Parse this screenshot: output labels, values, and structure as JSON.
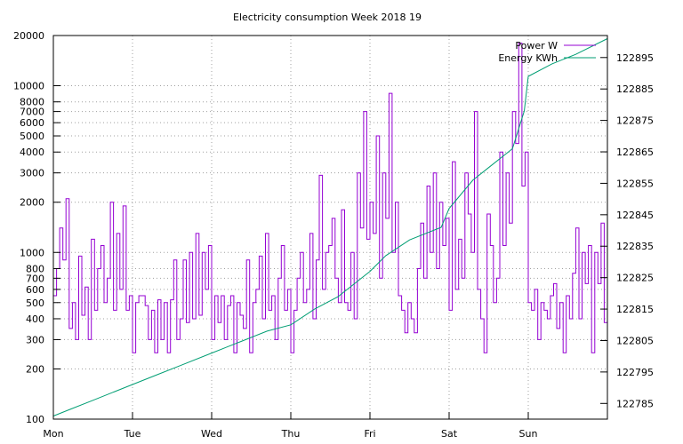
{
  "chart_data": {
    "type": "line",
    "title": "Electricity consumption Week 2018 19",
    "x_ticks": [
      "Mon",
      "Tue",
      "Wed",
      "Thu",
      "Fri",
      "Sat",
      "Sun"
    ],
    "xlim_days": [
      0,
      7
    ],
    "y_left": {
      "scale": "log",
      "range": [
        100,
        20000
      ],
      "tick_values": [
        100,
        200,
        300,
        400,
        500,
        600,
        700,
        800,
        1000,
        2000,
        3000,
        4000,
        5000,
        6000,
        7000,
        8000,
        10000,
        20000
      ],
      "tick_labels": [
        "100",
        "200",
        "300",
        "400",
        "500",
        "600",
        "700",
        "800",
        "1000",
        "2000",
        "3000",
        "4000",
        "5000",
        "6000",
        "7000",
        "8000",
        "10000",
        "20000"
      ]
    },
    "y_right": {
      "scale": "linear",
      "range": [
        122780,
        122902
      ],
      "tick_values": [
        122785,
        122795,
        122805,
        122815,
        122825,
        122835,
        122845,
        122855,
        122865,
        122875,
        122885,
        122895
      ],
      "tick_labels": [
        "122785",
        "122795",
        "122805",
        "122815",
        "122825",
        "122835",
        "122845",
        "122855",
        "122865",
        "122875",
        "122885",
        "122895"
      ]
    },
    "grid": true,
    "legend_position": "top-right",
    "series": [
      {
        "name": "Power W",
        "axis": "left",
        "color": "#9400d3",
        "style": "steps",
        "x": [
          0.0,
          0.04,
          0.08,
          0.12,
          0.16,
          0.2,
          0.24,
          0.28,
          0.32,
          0.36,
          0.4,
          0.44,
          0.48,
          0.52,
          0.56,
          0.6,
          0.64,
          0.68,
          0.72,
          0.76,
          0.8,
          0.84,
          0.88,
          0.92,
          0.96,
          1.0,
          1.04,
          1.08,
          1.12,
          1.16,
          1.2,
          1.24,
          1.28,
          1.32,
          1.36,
          1.4,
          1.44,
          1.48,
          1.52,
          1.56,
          1.6,
          1.64,
          1.68,
          1.72,
          1.76,
          1.8,
          1.84,
          1.88,
          1.92,
          1.96,
          2.0,
          2.04,
          2.08,
          2.12,
          2.16,
          2.2,
          2.24,
          2.28,
          2.32,
          2.36,
          2.4,
          2.44,
          2.48,
          2.52,
          2.56,
          2.6,
          2.64,
          2.68,
          2.72,
          2.76,
          2.8,
          2.84,
          2.88,
          2.92,
          2.96,
          3.0,
          3.04,
          3.08,
          3.12,
          3.16,
          3.2,
          3.24,
          3.28,
          3.32,
          3.36,
          3.4,
          3.44,
          3.48,
          3.52,
          3.56,
          3.6,
          3.64,
          3.68,
          3.72,
          3.76,
          3.8,
          3.84,
          3.88,
          3.92,
          3.96,
          4.0,
          4.04,
          4.08,
          4.12,
          4.16,
          4.2,
          4.24,
          4.28,
          4.32,
          4.36,
          4.4,
          4.44,
          4.48,
          4.52,
          4.56,
          4.6,
          4.64,
          4.68,
          4.72,
          4.76,
          4.8,
          4.84,
          4.88,
          4.92,
          4.96,
          5.0,
          5.04,
          5.08,
          5.12,
          5.16,
          5.2,
          5.24,
          5.28,
          5.32,
          5.36,
          5.4,
          5.44,
          5.48,
          5.52,
          5.56,
          5.6,
          5.64,
          5.68,
          5.72,
          5.76,
          5.8,
          5.84,
          5.88,
          5.92,
          5.96,
          6.0,
          6.04,
          6.08,
          6.12,
          6.16,
          6.2,
          6.24,
          6.28,
          6.32,
          6.36,
          6.4,
          6.44,
          6.48,
          6.52,
          6.56,
          6.6,
          6.64,
          6.68,
          6.72,
          6.76,
          6.8,
          6.84,
          6.88,
          6.92,
          6.96
        ],
        "y": [
          550,
          800,
          1400,
          900,
          2100,
          350,
          500,
          300,
          950,
          420,
          620,
          300,
          1200,
          450,
          800,
          1100,
          500,
          700,
          2000,
          450,
          1300,
          600,
          1900,
          450,
          550,
          250,
          500,
          550,
          550,
          480,
          300,
          450,
          250,
          520,
          300,
          500,
          250,
          520,
          900,
          300,
          400,
          900,
          380,
          1000,
          400,
          1300,
          420,
          1000,
          600,
          1100,
          300,
          550,
          380,
          550,
          300,
          480,
          550,
          250,
          500,
          420,
          350,
          900,
          250,
          500,
          600,
          950,
          400,
          1300,
          450,
          550,
          300,
          700,
          1100,
          450,
          600,
          250,
          450,
          700,
          1000,
          500,
          600,
          1300,
          400,
          900,
          2900,
          600,
          1000,
          1100,
          1600,
          700,
          500,
          1800,
          500,
          450,
          1000,
          400,
          3000,
          1400,
          7000,
          1200,
          2000,
          1300,
          5000,
          700,
          3000,
          1600,
          9000,
          1000,
          2000,
          550,
          450,
          330,
          500,
          400,
          330,
          800,
          1500,
          700,
          2500,
          1000,
          3000,
          800,
          2000,
          1100,
          1600,
          450,
          3500,
          600,
          1200,
          700,
          3000,
          1700,
          1000,
          7000,
          600,
          400,
          250,
          1700,
          1100,
          500,
          700,
          4000,
          1100,
          3000,
          1500,
          7000,
          4500,
          18000,
          2500,
          4000,
          500,
          450,
          600,
          300,
          500,
          450,
          400,
          550,
          650,
          350,
          500,
          250,
          550,
          400,
          750,
          1400,
          400,
          1000,
          650,
          1100,
          250,
          1000,
          650,
          1500,
          380
        ]
      },
      {
        "name": "Energy KWh",
        "axis": "right",
        "color": "#009e73",
        "style": "line",
        "x": [
          0.0,
          0.2,
          0.5,
          0.8,
          1.0,
          1.3,
          1.6,
          2.0,
          2.4,
          2.7,
          3.0,
          3.3,
          3.6,
          4.0,
          4.2,
          4.5,
          4.9,
          5.0,
          5.3,
          5.5,
          5.8,
          5.95,
          6.0,
          6.3,
          6.6,
          7.0
        ],
        "y": [
          122781,
          122783,
          122786,
          122789,
          122791,
          122794,
          122797,
          122801,
          122805,
          122808,
          122810,
          122815,
          122819,
          122827,
          122832,
          122837,
          122841,
          122847,
          122856,
          122860,
          122866,
          122878,
          122889,
          122893,
          122896,
          122901
        ]
      }
    ]
  }
}
